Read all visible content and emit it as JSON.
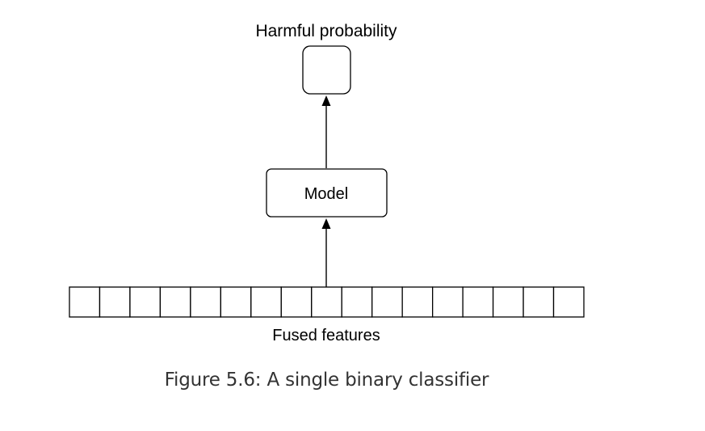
{
  "diagram": {
    "output_label": "Harmful probability",
    "model_label": "Model",
    "features_label": "Fused features",
    "feature_cell_count": 17,
    "colors": {
      "stroke": "#000000",
      "text": "#000000",
      "caption": "#333333"
    }
  },
  "caption": {
    "text": "Figure 5.6: A single binary classifier"
  }
}
